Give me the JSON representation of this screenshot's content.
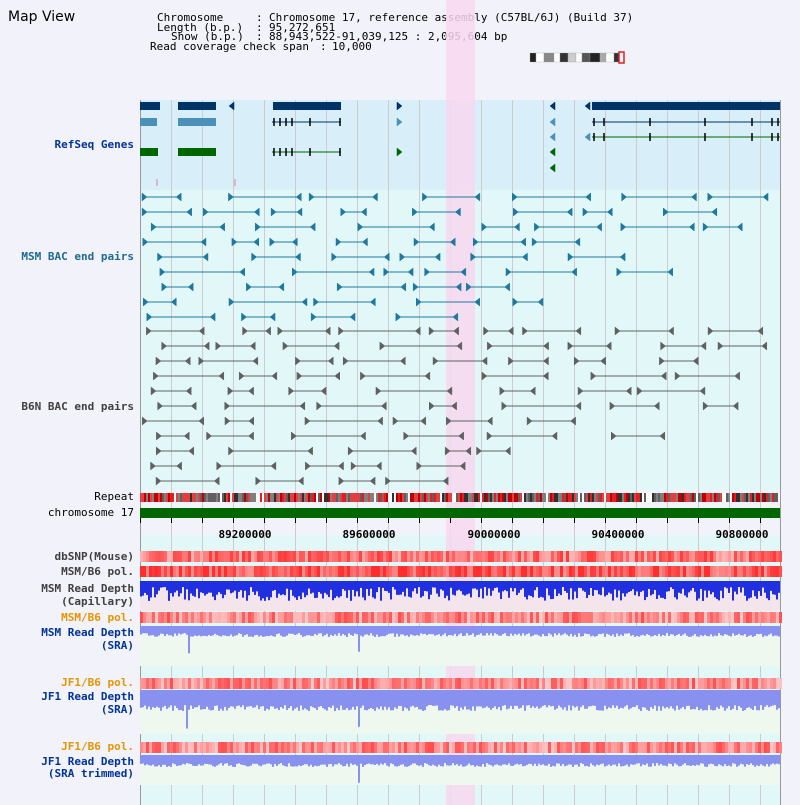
{
  "view_title": "Map View",
  "info": {
    "chromosome_label": "Chromosome",
    "chromosome_value": "Chromosome 17, reference assembly (C57BL/6J) (Build 37)",
    "length_label": "Length (b.p.)",
    "length_value": "95,272,651",
    "show_label": "Show (b.p.)",
    "show_value": "88,943,522-91,039,125 : 2,095,604 bp",
    "coverage_label": "Read coverage check span",
    "coverage_value": "10,000"
  },
  "tracks": {
    "refseq": "RefSeq Genes",
    "msm_bac": "MSM BAC end pairs",
    "b6n_bac": "B6N BAC end pairs",
    "repeat": "Repeat",
    "chromosome": "chromosome 17",
    "dbsnp": "dbSNP(Mouse)",
    "msm_b6_pol_1": "MSM/B6 pol.",
    "msm_depth_cap_1": "MSM Read Depth",
    "msm_depth_cap_2": "(Capillary)",
    "msm_b6_pol_2": "MSM/B6 pol.",
    "msm_depth_sra_1": "MSM Read Depth",
    "msm_depth_sra_2": "(SRA)",
    "jf1_b6_pol_1": "JF1/B6 pol.",
    "jf1_depth_sra_1": "JF1 Read Depth",
    "jf1_depth_sra_2": "(SRA)",
    "jf1_b6_pol_2": "JF1/B6 pol.",
    "jf1_depth_trim_1": "JF1 Read Depth",
    "jf1_depth_trim_2": "(SRA trimmed)"
  },
  "axis": {
    "ticks": [
      "89200000",
      "89600000",
      "90000000",
      "90400000",
      "90800000"
    ]
  },
  "colors": {
    "refseq_bg": "#d8eef8",
    "bac_bg": "#e2f8f8",
    "highlight": "#f8d8f0",
    "gene_dark": "#003366",
    "gene_mid": "#4a90b8",
    "gene_green": "#006600",
    "msm_pair": "#1e78a0",
    "b6n_pair": "#606060",
    "snp": "#e83030",
    "depth_blue": "#2030e0",
    "depth_light": "#8890f0",
    "label_blue": "#003399",
    "label_orange": "#e69500",
    "label_gray": "#404040"
  }
}
